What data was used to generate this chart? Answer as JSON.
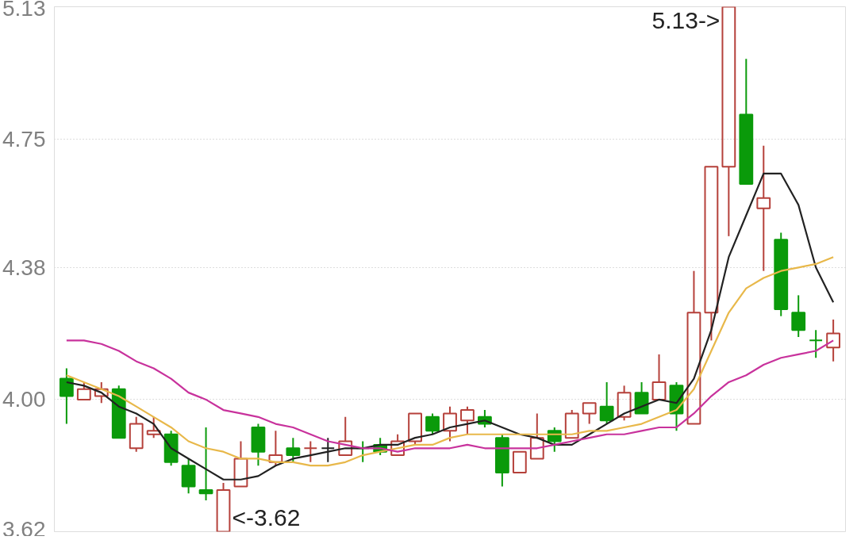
{
  "chart_data": {
    "type": "candlestick",
    "categories": [
      null,
      null,
      null,
      null,
      null,
      null,
      null,
      null,
      null,
      null,
      null,
      null,
      null,
      null,
      null,
      null,
      null,
      null,
      null,
      null,
      null,
      null,
      null,
      null,
      null,
      null,
      null,
      null,
      null,
      null,
      null,
      null,
      null,
      null,
      null,
      null,
      null,
      null,
      null,
      null,
      null,
      null,
      null,
      null,
      null
    ],
    "ohlc": [
      [
        4.06,
        4.09,
        3.93,
        4.01
      ],
      [
        4.0,
        4.05,
        4.0,
        4.03
      ],
      [
        4.01,
        4.05,
        3.99,
        4.03
      ],
      [
        4.03,
        4.04,
        3.89,
        3.89
      ],
      [
        3.86,
        3.95,
        3.85,
        3.93
      ],
      [
        3.9,
        3.95,
        3.89,
        3.91
      ],
      [
        3.9,
        3.91,
        3.81,
        3.82
      ],
      [
        3.81,
        3.83,
        3.73,
        3.75
      ],
      [
        3.74,
        3.92,
        3.71,
        3.73
      ],
      [
        3.62,
        3.76,
        3.62,
        3.74
      ],
      [
        3.75,
        3.88,
        3.75,
        3.83
      ],
      [
        3.92,
        3.93,
        3.81,
        3.85
      ],
      [
        3.82,
        3.91,
        3.81,
        3.84
      ],
      [
        3.86,
        3.89,
        3.82,
        3.84
      ],
      [
        3.86,
        3.88,
        3.82,
        3.86
      ],
      [
        3.86,
        3.89,
        3.82,
        3.86
      ],
      [
        3.84,
        3.95,
        3.84,
        3.88
      ],
      [
        3.86,
        3.88,
        3.82,
        3.86
      ],
      [
        3.87,
        3.89,
        3.84,
        3.85
      ],
      [
        3.84,
        3.9,
        3.84,
        3.88
      ],
      [
        3.88,
        3.96,
        3.87,
        3.96
      ],
      [
        3.95,
        3.96,
        3.9,
        3.91
      ],
      [
        3.91,
        3.98,
        3.88,
        3.96
      ],
      [
        3.94,
        3.98,
        3.9,
        3.97
      ],
      [
        3.95,
        3.97,
        3.92,
        3.93
      ],
      [
        3.89,
        3.9,
        3.75,
        3.79
      ],
      [
        3.79,
        3.85,
        3.79,
        3.85
      ],
      [
        3.83,
        3.96,
        3.83,
        3.89
      ],
      [
        3.91,
        3.92,
        3.85,
        3.88
      ],
      [
        3.89,
        3.97,
        3.89,
        3.96
      ],
      [
        3.96,
        3.99,
        3.93,
        3.99
      ],
      [
        3.98,
        4.05,
        3.93,
        3.94
      ],
      [
        3.95,
        4.04,
        3.94,
        4.02
      ],
      [
        4.02,
        4.05,
        3.96,
        3.96
      ],
      [
        4.0,
        4.13,
        4.0,
        4.05
      ],
      [
        4.04,
        4.05,
        3.91,
        3.96
      ],
      [
        3.93,
        4.37,
        3.93,
        4.25
      ],
      [
        4.25,
        4.67,
        4.17,
        4.67
      ],
      [
        4.67,
        5.13,
        4.47,
        5.13
      ],
      [
        4.82,
        4.98,
        4.62,
        4.62
      ],
      [
        4.55,
        4.73,
        4.37,
        4.58
      ],
      [
        4.46,
        4.48,
        4.24,
        4.26
      ],
      [
        4.25,
        4.3,
        4.18,
        4.2
      ],
      [
        4.17,
        4.2,
        4.12,
        4.17
      ],
      [
        4.15,
        4.23,
        4.11,
        4.19
      ]
    ],
    "colors": [
      "#0a9a0a",
      "#b5403a",
      "#b5403a",
      "#0a9a0a",
      "#b5403a",
      "#b5403a",
      "#0a9a0a",
      "#0a9a0a",
      "#0a9a0a",
      "#b5403a",
      "#b5403a",
      "#0a9a0a",
      "#b5403a",
      "#0a9a0a",
      "#b5403a",
      "#222222",
      "#b5403a",
      "#0a9a0a",
      "#0a9a0a",
      "#b5403a",
      "#b5403a",
      "#0a9a0a",
      "#b5403a",
      "#b5403a",
      "#0a9a0a",
      "#0a9a0a",
      "#b5403a",
      "#b5403a",
      "#0a9a0a",
      "#b5403a",
      "#b5403a",
      "#0a9a0a",
      "#b5403a",
      "#0a9a0a",
      "#b5403a",
      "#0a9a0a",
      "#b5403a",
      "#b5403a",
      "#b5403a",
      "#0a9a0a",
      "#b5403a",
      "#0a9a0a",
      "#0a9a0a",
      "#0a9a0a",
      "#b5403a"
    ],
    "series": [
      {
        "type": "line",
        "color": "#222222",
        "values": [
          4.05,
          4.04,
          4.02,
          3.98,
          3.96,
          3.93,
          3.86,
          3.83,
          3.8,
          3.77,
          3.77,
          3.78,
          3.81,
          3.83,
          3.84,
          3.85,
          3.86,
          3.86,
          3.87,
          3.87,
          3.89,
          3.9,
          3.92,
          3.93,
          3.94,
          3.92,
          3.9,
          3.89,
          3.87,
          3.87,
          3.9,
          3.93,
          3.96,
          3.98,
          4.0,
          3.99,
          4.06,
          4.2,
          4.41,
          4.53,
          4.65,
          4.65,
          4.56,
          4.38,
          4.28
        ]
      },
      {
        "type": "line",
        "color": "#e8b84a",
        "values": [
          4.07,
          4.05,
          4.03,
          4.01,
          3.98,
          3.95,
          3.92,
          3.88,
          3.86,
          3.85,
          3.83,
          3.83,
          3.82,
          3.82,
          3.81,
          3.81,
          3.82,
          3.84,
          3.85,
          3.86,
          3.87,
          3.87,
          3.89,
          3.9,
          3.9,
          3.9,
          3.9,
          3.9,
          3.9,
          3.9,
          3.91,
          3.91,
          3.92,
          3.93,
          3.95,
          3.97,
          4.03,
          4.14,
          4.25,
          4.32,
          4.35,
          4.37,
          4.38,
          4.39,
          4.41
        ]
      },
      {
        "type": "line",
        "color": "#c8329c",
        "values": [
          4.17,
          4.17,
          4.16,
          4.14,
          4.11,
          4.09,
          4.06,
          4.02,
          4.0,
          3.97,
          3.96,
          3.95,
          3.93,
          3.92,
          3.9,
          3.88,
          3.87,
          3.86,
          3.86,
          3.85,
          3.86,
          3.86,
          3.86,
          3.87,
          3.86,
          3.86,
          3.86,
          3.86,
          3.87,
          3.88,
          3.89,
          3.9,
          3.9,
          3.91,
          3.92,
          3.92,
          3.96,
          4.01,
          4.05,
          4.07,
          4.1,
          4.12,
          4.13,
          4.14,
          4.17
        ]
      }
    ],
    "ylim": [
      3.62,
      5.13
    ],
    "yticks": [
      3.62,
      {
        "value": 4.0,
        "label": "4.00"
      },
      4.38,
      4.75,
      5.13
    ],
    "grid": "y",
    "tick_labels": "y",
    "annotations": [
      "5.13->",
      "<-3.62"
    ]
  }
}
